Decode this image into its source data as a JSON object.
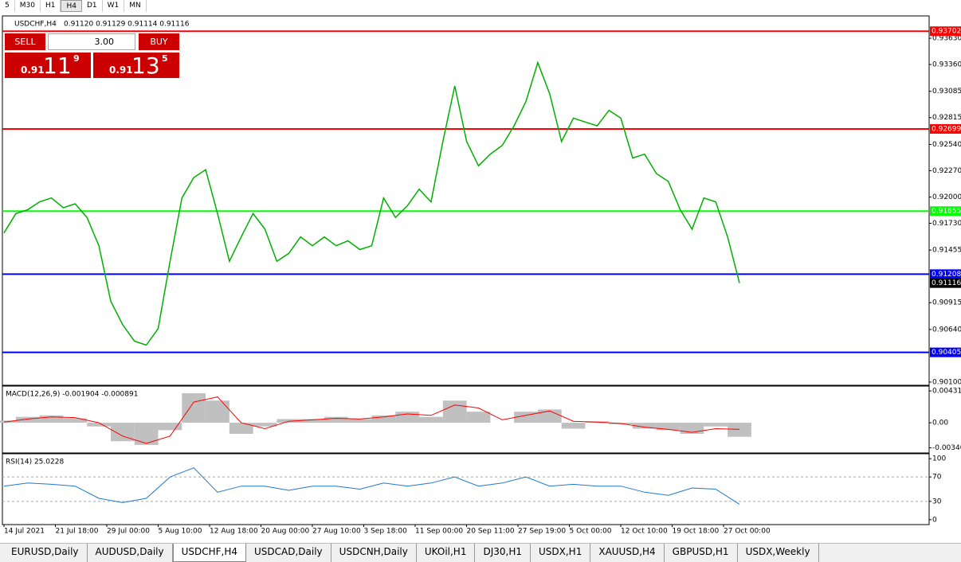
{
  "toolbar": {
    "timeframes": [
      "5",
      "M30",
      "H1",
      "H4",
      "D1",
      "W1",
      "MN"
    ],
    "active": 3
  },
  "trade_panel": {
    "sell": "SELL",
    "buy": "BUY",
    "lot": "3.00",
    "sell_price": {
      "big": "0.91",
      "main": "11",
      "pip": "9"
    },
    "buy_price": {
      "big": "0.91",
      "main": "13",
      "pip": "5"
    }
  },
  "chart_data": [
    {
      "type": "line",
      "title": "USDCHF,H4",
      "subtitle": "0.91120 0.91129 0.91114 0.91116",
      "x_labels": [
        "14 Jul 2021",
        "21 Jul 18:00",
        "29 Jul 00:00",
        "5 Aug 10:00",
        "12 Aug 18:00",
        "20 Aug 00:00",
        "27 Aug 10:00",
        "3 Sep 18:00",
        "11 Sep 00:00",
        "20 Sep 11:00",
        "27 Sep 19:00",
        "5 Oct 00:00",
        "12 Oct 10:00",
        "19 Oct 18:00",
        "27 Oct 00:00"
      ],
      "series": [
        {
          "color": "#00b000",
          "values": [
            0.9163,
            0.9183,
            0.9187,
            0.9195,
            0.9199,
            0.9189,
            0.9193,
            0.9179,
            0.915,
            0.9093,
            0.9069,
            0.9052,
            0.9048,
            0.9065,
            0.9134,
            0.9199,
            0.922,
            0.9228,
            0.9183,
            0.9134,
            0.9159,
            0.9183,
            0.9167,
            0.9134,
            0.9142,
            0.9159,
            0.915,
            0.9159,
            0.915,
            0.9155,
            0.9146,
            0.915,
            0.9199,
            0.9179,
            0.9191,
            0.9208,
            0.9195,
            0.9257,
            0.9314,
            0.9257,
            0.9232,
            0.9244,
            0.9253,
            0.9273,
            0.9298,
            0.9338,
            0.9306,
            0.9257,
            0.9281,
            0.9277,
            0.9273,
            0.9289,
            0.9281,
            0.924,
            0.9244,
            0.9224,
            0.9216,
            0.9187,
            0.9167,
            0.9199,
            0.9195,
            0.9159,
            0.91116
          ]
        }
      ],
      "ylim": [
        0.90067,
        0.93859
      ],
      "yticks": [
        {
          "value": 0.9363,
          "label": "0.93630"
        },
        {
          "value": 0.9336,
          "label": "0.93360"
        },
        {
          "value": 0.93085,
          "label": "0.93085"
        },
        {
          "value": 0.92815,
          "label": "0.92815"
        },
        {
          "value": 0.9254,
          "label": "0.92540"
        },
        {
          "value": 0.9227,
          "label": "0.92270"
        },
        {
          "value": 0.92,
          "label": "0.92000"
        },
        {
          "value": 0.9173,
          "label": "0.91730"
        },
        {
          "value": 0.91455,
          "label": "0.91455"
        },
        {
          "value": 0.90915,
          "label": "0.90915"
        },
        {
          "value": 0.9064,
          "label": "0.90640"
        },
        {
          "value": 0.901,
          "label": "0.90100"
        }
      ],
      "levels": [
        {
          "value": 0.93702,
          "label": "0.93702",
          "color": "#ff0000"
        },
        {
          "value": 0.92699,
          "label": "0.92699",
          "color": "#ff0000"
        },
        {
          "value": 0.91855,
          "label": "0.91855",
          "color": "#00ff00"
        },
        {
          "value": 0.91208,
          "label": "0.91208",
          "color": "#0000ff"
        },
        {
          "value": 0.90405,
          "label": "0.90405",
          "color": "#0000ff"
        }
      ],
      "current": {
        "value": 0.91116,
        "label": "0.91116"
      }
    },
    {
      "type": "macd",
      "title": "MACD(12,26,9) -0.001904 -0.000891",
      "series": [
        {
          "color": "#c0c0c0",
          "values": [
            0.0003,
            0.0008,
            0.001,
            0.0006,
            -0.0005,
            -0.0025,
            -0.003,
            -0.001,
            0.004,
            0.003,
            -0.0015,
            -0.0005,
            0.0005,
            0.0005,
            0.0008,
            0.0005,
            0.001,
            0.0015,
            0.0008,
            0.003,
            0.0015,
            0.0,
            0.0015,
            0.0018,
            -0.0008,
            0.0002,
            -0.0002,
            -0.0008,
            -0.001,
            -0.0015,
            -0.0005,
            -0.0019
          ]
        },
        {
          "color": "#ff0000",
          "values": [
            0.0001,
            0.0005,
            0.0008,
            0.0007,
            0.0,
            -0.0018,
            -0.0028,
            -0.0018,
            0.0028,
            0.0035,
            0.0,
            -0.0008,
            0.0002,
            0.0004,
            0.0006,
            0.0005,
            0.0008,
            0.0012,
            0.001,
            0.0024,
            0.002,
            0.0004,
            0.001,
            0.0016,
            0.0002,
            0.0001,
            -0.0001,
            -0.0006,
            -0.0009,
            -0.0013,
            -0.0008,
            -0.0009
          ]
        }
      ],
      "ylim": [
        -0.00409,
        0.00497
      ],
      "yticks": [
        {
          "value": 0.00431,
          "label": "0.00431"
        },
        {
          "value": 0,
          "label": "0.00"
        },
        {
          "value": -0.0034,
          "label": "-0.00340"
        }
      ]
    },
    {
      "type": "line",
      "title": "RSI(14) 25.0228",
      "series": [
        {
          "color": "#1e78d0",
          "values": [
            55,
            60,
            58,
            55,
            35,
            28,
            35,
            70,
            85,
            45,
            55,
            55,
            48,
            55,
            55,
            50,
            60,
            55,
            60,
            70,
            55,
            60,
            70,
            55,
            58,
            55,
            55,
            45,
            40,
            52,
            50,
            25
          ]
        }
      ],
      "ylim": [
        -8.1,
        108.1
      ],
      "yticks": [
        100,
        70,
        30,
        0
      ],
      "levels": [
        70,
        30
      ]
    }
  ],
  "tabs": [
    "EURUSD,Daily",
    "AUDUSD,Daily",
    "USDCHF,H4",
    "USDCAD,Daily",
    "USDCNH,Daily",
    "UKOil,H1",
    "DJ30,H1",
    "USDX,H1",
    "XAUUSD,H4",
    "GBPUSD,H1",
    "USDX,Weekly"
  ],
  "active_tab": 2
}
